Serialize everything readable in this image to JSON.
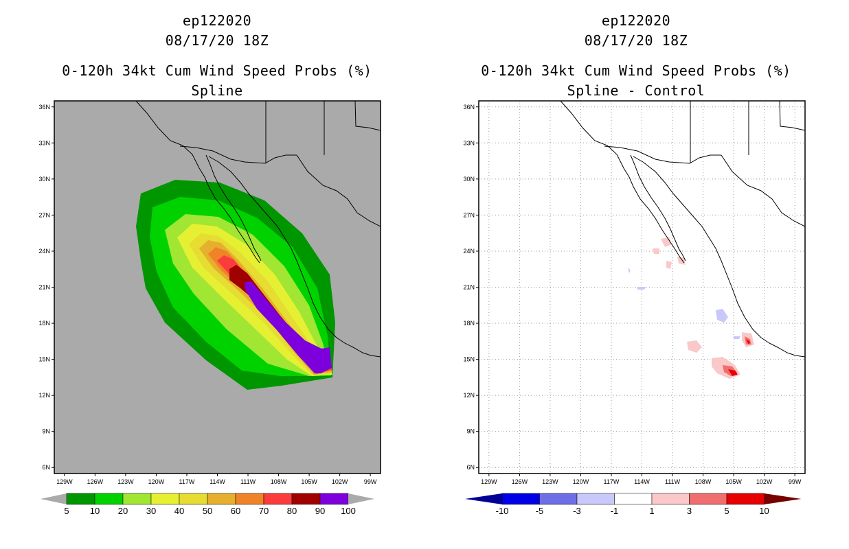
{
  "chart_data": [
    {
      "type": "heatmap",
      "name": "left-panel",
      "title_lines": [
        "ep122020",
        "08/17/20 18Z",
        "0-120h 34kt Cum Wind Speed Probs (%)",
        "Spline"
      ],
      "x_ticks": [
        "129W",
        "126W",
        "123W",
        "120W",
        "117W",
        "114W",
        "111W",
        "108W",
        "105W",
        "102W",
        "99W"
      ],
      "y_ticks": [
        "36N",
        "33N",
        "30N",
        "27N",
        "24N",
        "21N",
        "18N",
        "15N",
        "12N",
        "9N",
        "6N"
      ],
      "x_range_deg_west": [
        130,
        98
      ],
      "y_range_deg_north": [
        5.5,
        36.5
      ],
      "background_color": "#aaaaaa",
      "colorbar": {
        "labels": [
          "5",
          "10",
          "20",
          "30",
          "40",
          "50",
          "60",
          "70",
          "80",
          "90",
          "100"
        ],
        "colors": [
          "#009600",
          "#00d200",
          "#a0e632",
          "#e6f032",
          "#e6dc32",
          "#e6af2d",
          "#f08228",
          "#fa3c3c",
          "#a00000",
          "#7d00dc"
        ],
        "under_color": "#aaaaaa",
        "over_color": "#aaaaaa"
      }
    },
    {
      "type": "heatmap",
      "name": "right-panel",
      "title_lines": [
        "ep122020",
        "08/17/20 18Z",
        "0-120h 34kt Cum Wind Speed Probs (%)",
        "Spline - Control"
      ],
      "x_ticks": [
        "129W",
        "126W",
        "123W",
        "120W",
        "117W",
        "114W",
        "111W",
        "108W",
        "105W",
        "102W",
        "99W"
      ],
      "y_ticks": [
        "36N",
        "33N",
        "30N",
        "27N",
        "24N",
        "21N",
        "18N",
        "15N",
        "12N",
        "9N",
        "6N"
      ],
      "x_range_deg_west": [
        130,
        98
      ],
      "y_range_deg_north": [
        5.5,
        36.5
      ],
      "background_color": "#ffffff",
      "grid": true,
      "colorbar": {
        "labels": [
          "-10",
          "-5",
          "-3",
          "-1",
          "1",
          "3",
          "5",
          "10"
        ],
        "colors": [
          "#0000e6",
          "#6e6ee6",
          "#c8c8fa",
          "#ffffff",
          "#fac8c8",
          "#f06e6e",
          "#e60000"
        ],
        "under_color": "#000096",
        "over_color": "#780000"
      }
    }
  ]
}
